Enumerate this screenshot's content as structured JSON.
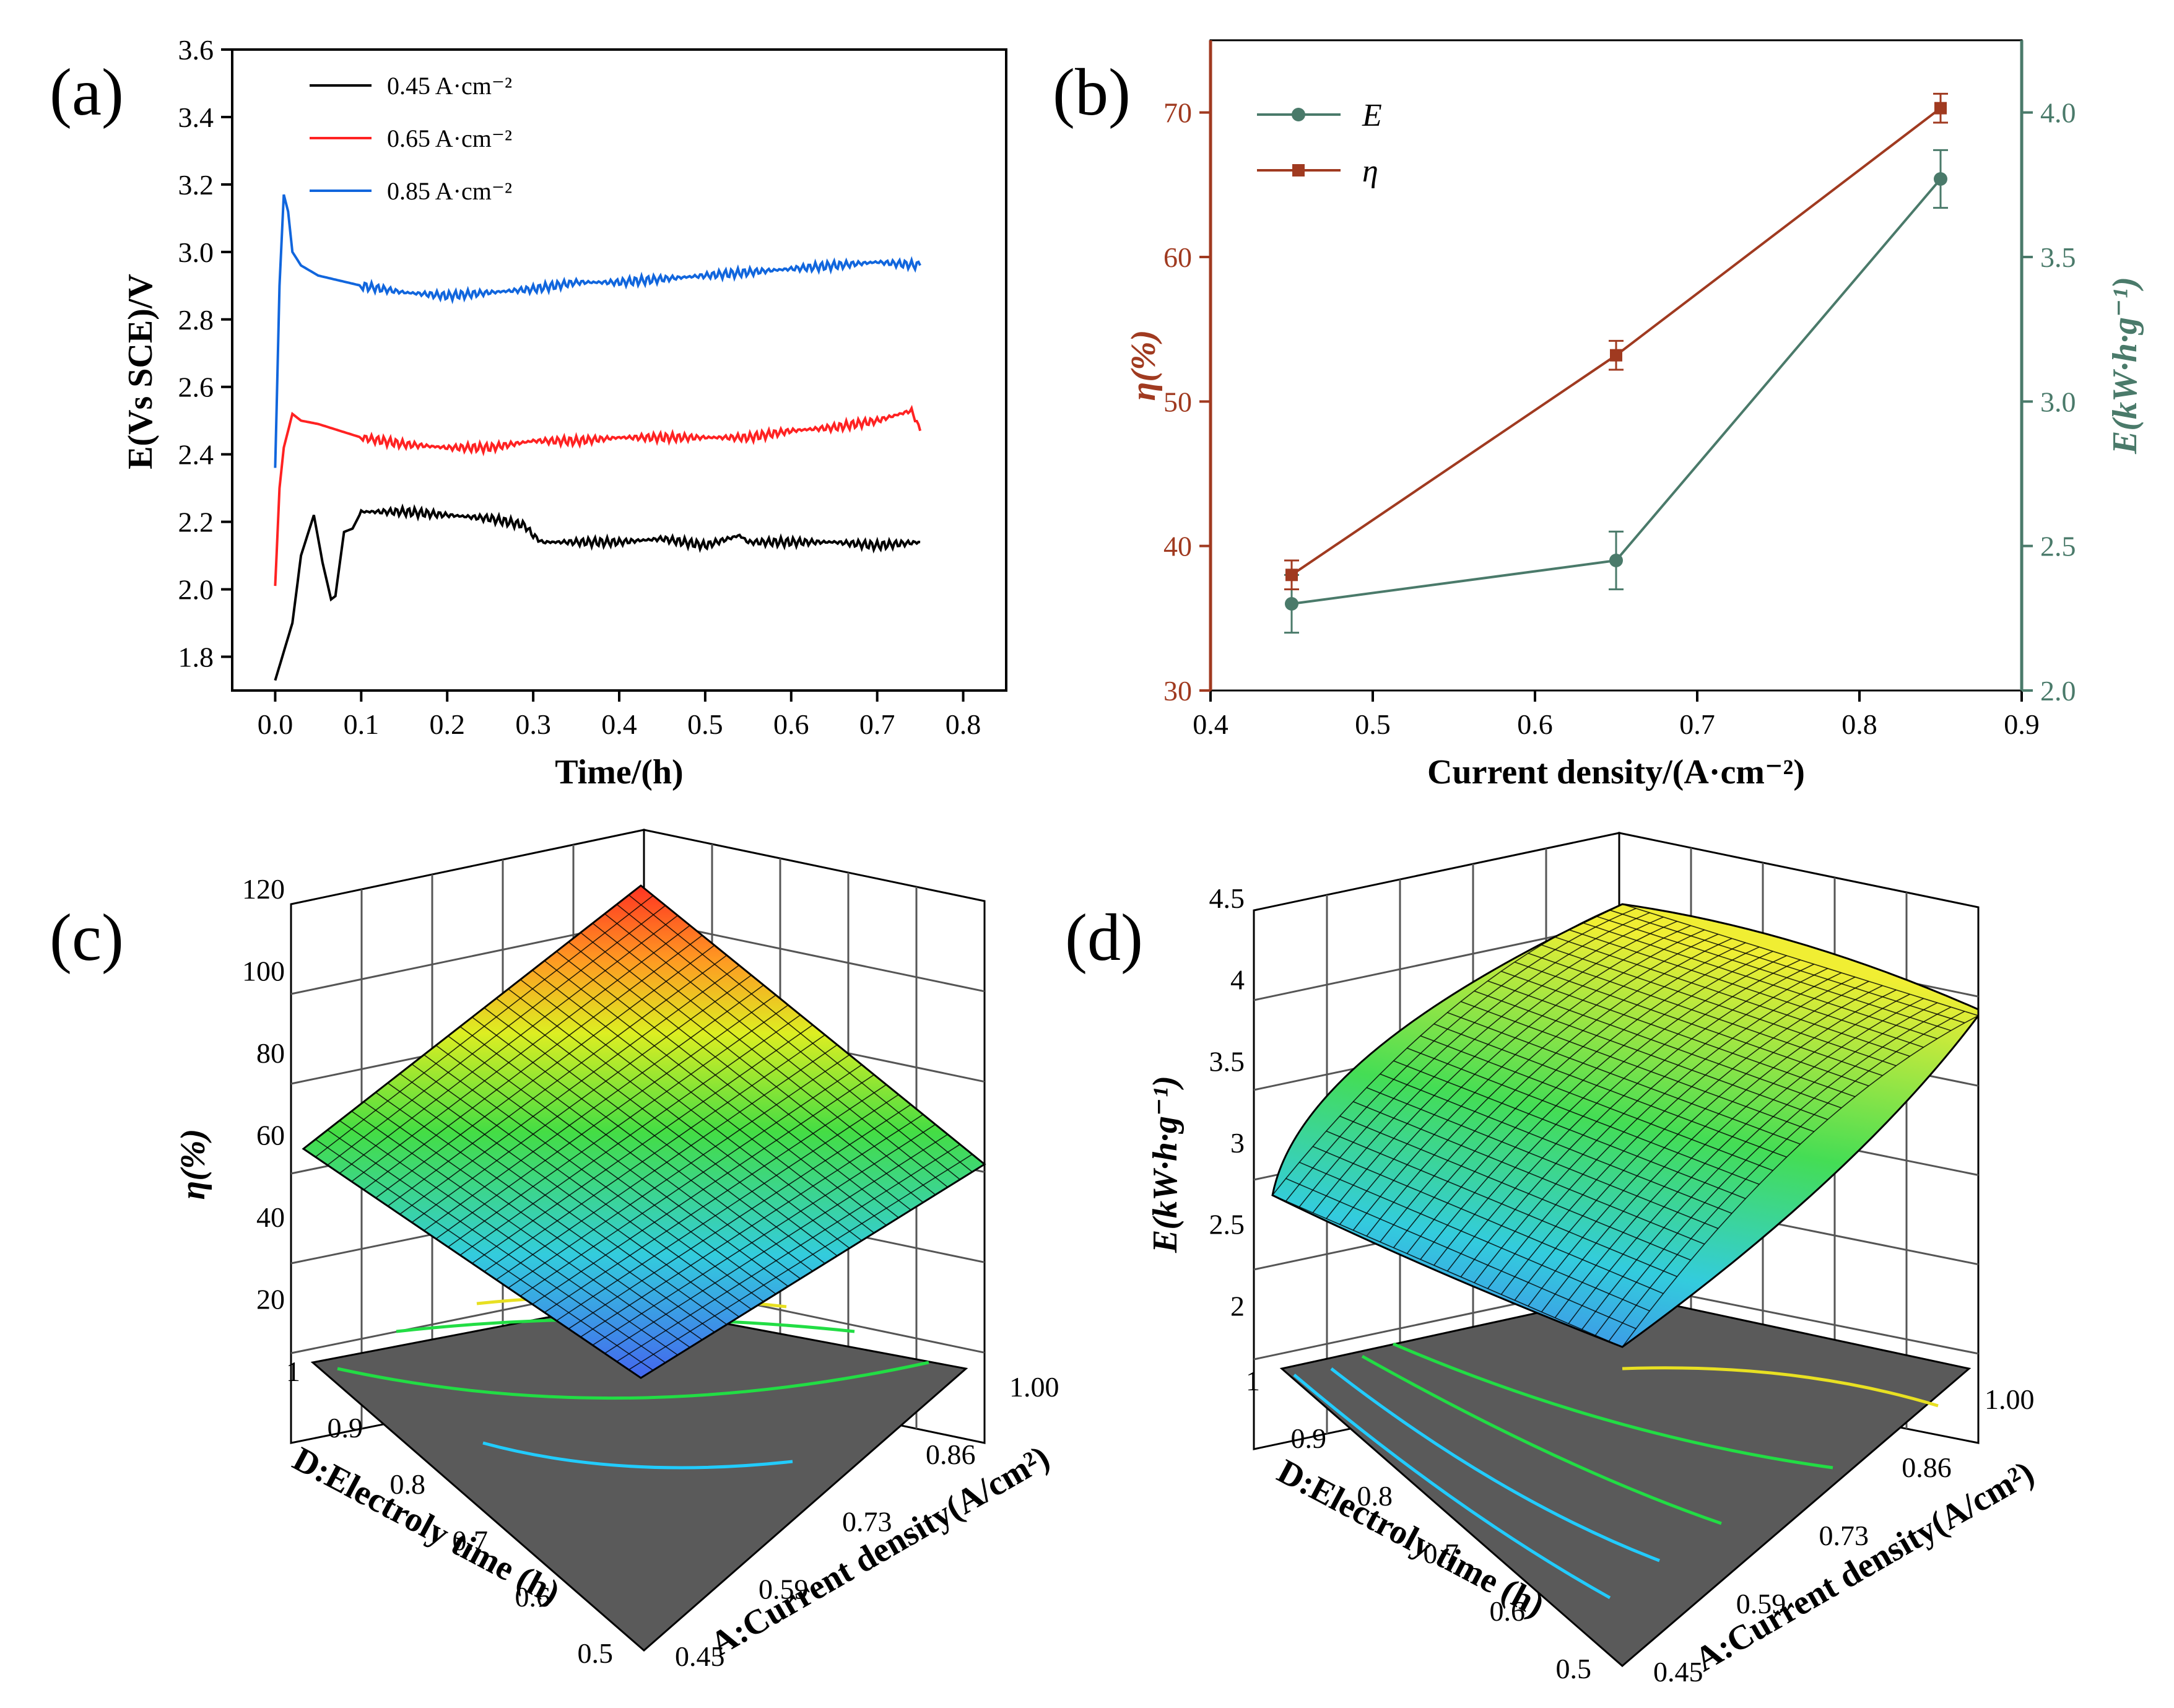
{
  "panels": {
    "a": {
      "label": "(a)"
    },
    "b": {
      "label": "(b)"
    },
    "c": {
      "label": "(c)"
    },
    "d": {
      "label": "(d)"
    }
  },
  "chart_data": [
    {
      "panel": "a",
      "type": "line",
      "xlabel": "Time/(h)",
      "ylabel": "E(Vs SCE)/V",
      "xlim": [
        -0.05,
        0.85
      ],
      "ylim": [
        1.7,
        3.6
      ],
      "xticks": [
        "0.0",
        "0.1",
        "0.2",
        "0.3",
        "0.4",
        "0.5",
        "0.6",
        "0.7",
        "0.8"
      ],
      "yticks": [
        "1.8",
        "2.0",
        "2.2",
        "2.4",
        "2.6",
        "2.8",
        "3.0",
        "3.2",
        "3.4",
        "3.6"
      ],
      "legend_position": "top-left",
      "series": [
        {
          "name": "0.45 A·cm⁻²",
          "color": "#000000",
          "x": [
            0.0,
            0.02,
            0.03,
            0.045,
            0.055,
            0.065,
            0.07,
            0.08,
            0.09,
            0.1,
            0.15,
            0.2,
            0.25,
            0.29,
            0.3,
            0.31,
            0.35,
            0.4,
            0.45,
            0.5,
            0.54,
            0.55,
            0.6,
            0.65,
            0.7,
            0.75
          ],
          "y": [
            1.73,
            1.9,
            2.1,
            2.22,
            2.08,
            1.97,
            1.98,
            2.17,
            2.18,
            2.23,
            2.23,
            2.22,
            2.21,
            2.19,
            2.16,
            2.14,
            2.14,
            2.14,
            2.15,
            2.13,
            2.16,
            2.14,
            2.14,
            2.14,
            2.13,
            2.14
          ]
        },
        {
          "name": "0.65 A·cm⁻²",
          "color": "#ff2222",
          "x": [
            0.0,
            0.005,
            0.01,
            0.02,
            0.03,
            0.05,
            0.1,
            0.15,
            0.2,
            0.25,
            0.3,
            0.35,
            0.4,
            0.45,
            0.5,
            0.55,
            0.6,
            0.65,
            0.7,
            0.74,
            0.75
          ],
          "y": [
            2.01,
            2.3,
            2.42,
            2.52,
            2.5,
            2.49,
            2.45,
            2.43,
            2.42,
            2.42,
            2.44,
            2.44,
            2.45,
            2.45,
            2.45,
            2.45,
            2.47,
            2.48,
            2.5,
            2.53,
            2.47
          ]
        },
        {
          "name": "0.85 A·cm⁻²",
          "color": "#1166dd",
          "x": [
            0.0,
            0.005,
            0.01,
            0.015,
            0.02,
            0.03,
            0.05,
            0.1,
            0.15,
            0.2,
            0.25,
            0.3,
            0.35,
            0.4,
            0.45,
            0.5,
            0.55,
            0.6,
            0.65,
            0.7,
            0.75
          ],
          "y": [
            2.36,
            2.9,
            3.17,
            3.12,
            3.0,
            2.96,
            2.93,
            2.9,
            2.88,
            2.87,
            2.88,
            2.89,
            2.91,
            2.91,
            2.92,
            2.93,
            2.94,
            2.95,
            2.96,
            2.97,
            2.96
          ]
        }
      ]
    },
    {
      "panel": "b",
      "type": "line",
      "xlabel": "Current density/(A·cm⁻²)",
      "ylabel_left": "η(%)",
      "ylabel_right": "E(kW·h·g⁻¹)",
      "xlim": [
        0.4,
        0.9
      ],
      "ylim_left": [
        30,
        75
      ],
      "ylim_right": [
        2.0,
        4.25
      ],
      "xticks": [
        "0.4",
        "0.5",
        "0.6",
        "0.7",
        "0.8",
        "0.9"
      ],
      "yticks_left": [
        "30",
        "40",
        "50",
        "60",
        "70"
      ],
      "yticks_right": [
        "2.0",
        "2.5",
        "3.0",
        "3.5",
        "4.0"
      ],
      "left_axis_color": "#a03a20",
      "right_axis_color": "#4a7a6a",
      "legend_position": "top-left",
      "series": [
        {
          "name": "E",
          "axis": "right",
          "color": "#4a7a6a",
          "marker": "circle",
          "x": [
            0.45,
            0.65,
            0.85
          ],
          "y": [
            2.3,
            2.45,
            3.77
          ],
          "err": [
            0.1,
            0.1,
            0.1
          ]
        },
        {
          "name": "η",
          "axis": "left",
          "color": "#a03a20",
          "marker": "square",
          "x": [
            0.45,
            0.65,
            0.85
          ],
          "y": [
            38,
            53.2,
            70.3
          ],
          "err": [
            1.0,
            1.0,
            1.0
          ]
        }
      ]
    },
    {
      "panel": "c",
      "type": "surface",
      "zlabel": "η(%)",
      "xlabel": "A:Current density(A/cm²)",
      "ylabel": "D:Electroly time (h)",
      "zticks": [
        "20",
        "40",
        "60",
        "80",
        "100",
        "120"
      ],
      "xticks": [
        "0.45",
        "0.59",
        "0.73",
        "0.86",
        "1.00"
      ],
      "yticks": [
        "0.5",
        "0.6",
        "0.7",
        "0.8",
        "0.9",
        "1"
      ],
      "zlim": [
        0,
        120
      ]
    },
    {
      "panel": "d",
      "type": "surface",
      "zlabel": "E(kW·h·g⁻¹)",
      "xlabel": "A:Current density(A/cm²)",
      "ylabel": "D:Electroly time (h)",
      "zticks": [
        "2",
        "2.5",
        "3",
        "3.5",
        "4",
        "4.5"
      ],
      "xticks": [
        "0.45",
        "0.59",
        "0.73",
        "0.86",
        "1.00"
      ],
      "yticks": [
        "0.5",
        "0.6",
        "0.7",
        "0.8",
        "0.9",
        "1"
      ],
      "zlim": [
        1.5,
        4.5
      ]
    }
  ]
}
